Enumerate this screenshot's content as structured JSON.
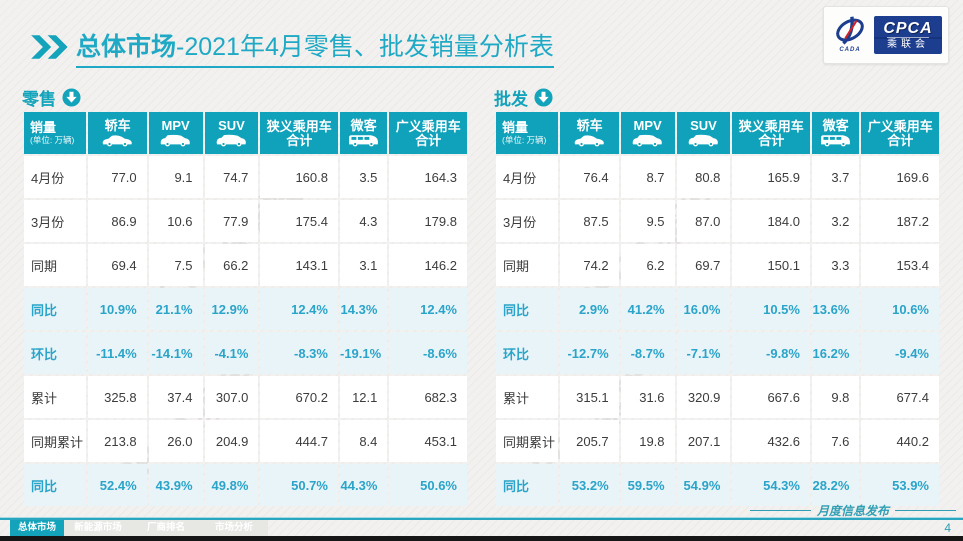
{
  "title": {
    "bold": "总体市场",
    "rest": "-2021年4月零售、批发销量分析表"
  },
  "logo": {
    "en": "CPCA",
    "cn": "乘联会",
    "sub": "CADA"
  },
  "watermark": "CPCA乘联",
  "unit_note": "(单位: 万辆)",
  "columns": [
    {
      "label": "销量"
    },
    {
      "label": "轿车",
      "icon": "sedan-icon"
    },
    {
      "label": "MPV",
      "icon": "mpv-icon"
    },
    {
      "label": "SUV",
      "icon": "suv-icon"
    },
    {
      "label": "狭义乘用车",
      "label2": "合计"
    },
    {
      "label": "微客",
      "icon": "minibus-icon"
    },
    {
      "label": "广义乘用车",
      "label2": "合计"
    }
  ],
  "tables": [
    {
      "title": "零售",
      "rows": [
        {
          "label": "4月份",
          "type": "num",
          "values": [
            "77.0",
            "9.1",
            "74.7",
            "160.8",
            "3.5",
            "164.3"
          ]
        },
        {
          "label": "3月份",
          "type": "num",
          "values": [
            "86.9",
            "10.6",
            "77.9",
            "175.4",
            "4.3",
            "179.8"
          ]
        },
        {
          "label": "同期",
          "type": "num",
          "values": [
            "69.4",
            "7.5",
            "66.2",
            "143.1",
            "3.1",
            "146.2"
          ]
        },
        {
          "label": "同比",
          "type": "pct",
          "values": [
            "10.9%",
            "21.1%",
            "12.9%",
            "12.4%",
            "14.3%",
            "12.4%"
          ]
        },
        {
          "label": "环比",
          "type": "pct",
          "values": [
            "-11.4%",
            "-14.1%",
            "-4.1%",
            "-8.3%",
            "-19.1%",
            "-8.6%"
          ]
        },
        {
          "label": "累计",
          "type": "num",
          "values": [
            "325.8",
            "37.4",
            "307.0",
            "670.2",
            "12.1",
            "682.3"
          ]
        },
        {
          "label": "同期累计",
          "type": "num",
          "values": [
            "213.8",
            "26.0",
            "204.9",
            "444.7",
            "8.4",
            "453.1"
          ]
        },
        {
          "label": "同比",
          "type": "pct",
          "values": [
            "52.4%",
            "43.9%",
            "49.8%",
            "50.7%",
            "44.3%",
            "50.6%"
          ]
        }
      ]
    },
    {
      "title": "批发",
      "rows": [
        {
          "label": "4月份",
          "type": "num",
          "values": [
            "76.4",
            "8.7",
            "80.8",
            "165.9",
            "3.7",
            "169.6"
          ]
        },
        {
          "label": "3月份",
          "type": "num",
          "values": [
            "87.5",
            "9.5",
            "87.0",
            "184.0",
            "3.2",
            "187.2"
          ]
        },
        {
          "label": "同期",
          "type": "num",
          "values": [
            "74.2",
            "6.2",
            "69.7",
            "150.1",
            "3.3",
            "153.4"
          ]
        },
        {
          "label": "同比",
          "type": "pct",
          "values": [
            "2.9%",
            "41.2%",
            "16.0%",
            "10.5%",
            "13.6%",
            "10.6%"
          ]
        },
        {
          "label": "环比",
          "type": "pct",
          "values": [
            "-12.7%",
            "-8.7%",
            "-7.1%",
            "-9.8%",
            "16.2%",
            "-9.4%"
          ]
        },
        {
          "label": "累计",
          "type": "num",
          "values": [
            "315.1",
            "31.6",
            "320.9",
            "667.6",
            "9.8",
            "677.4"
          ]
        },
        {
          "label": "同期累计",
          "type": "num",
          "values": [
            "205.7",
            "19.8",
            "207.1",
            "432.6",
            "7.6",
            "440.2"
          ]
        },
        {
          "label": "同比",
          "type": "pct",
          "values": [
            "53.2%",
            "59.5%",
            "54.9%",
            "54.3%",
            "28.2%",
            "53.9%"
          ]
        }
      ]
    }
  ],
  "footer": {
    "tabs": [
      {
        "label": "总体市场",
        "active": true
      },
      {
        "label": "新能源市场",
        "active": false
      },
      {
        "label": "厂商排名",
        "active": false
      },
      {
        "label": "市场分析",
        "active": false
      }
    ],
    "caption": "月度信息发布",
    "page_number": "4"
  },
  "colors": {
    "accent": "#13a3bb",
    "header_teal": "#0fa2ba",
    "pct_text": "#2aa4c8",
    "pct_row_bg": "#e9f4f9",
    "logo_blue": "#1d3e8f"
  }
}
